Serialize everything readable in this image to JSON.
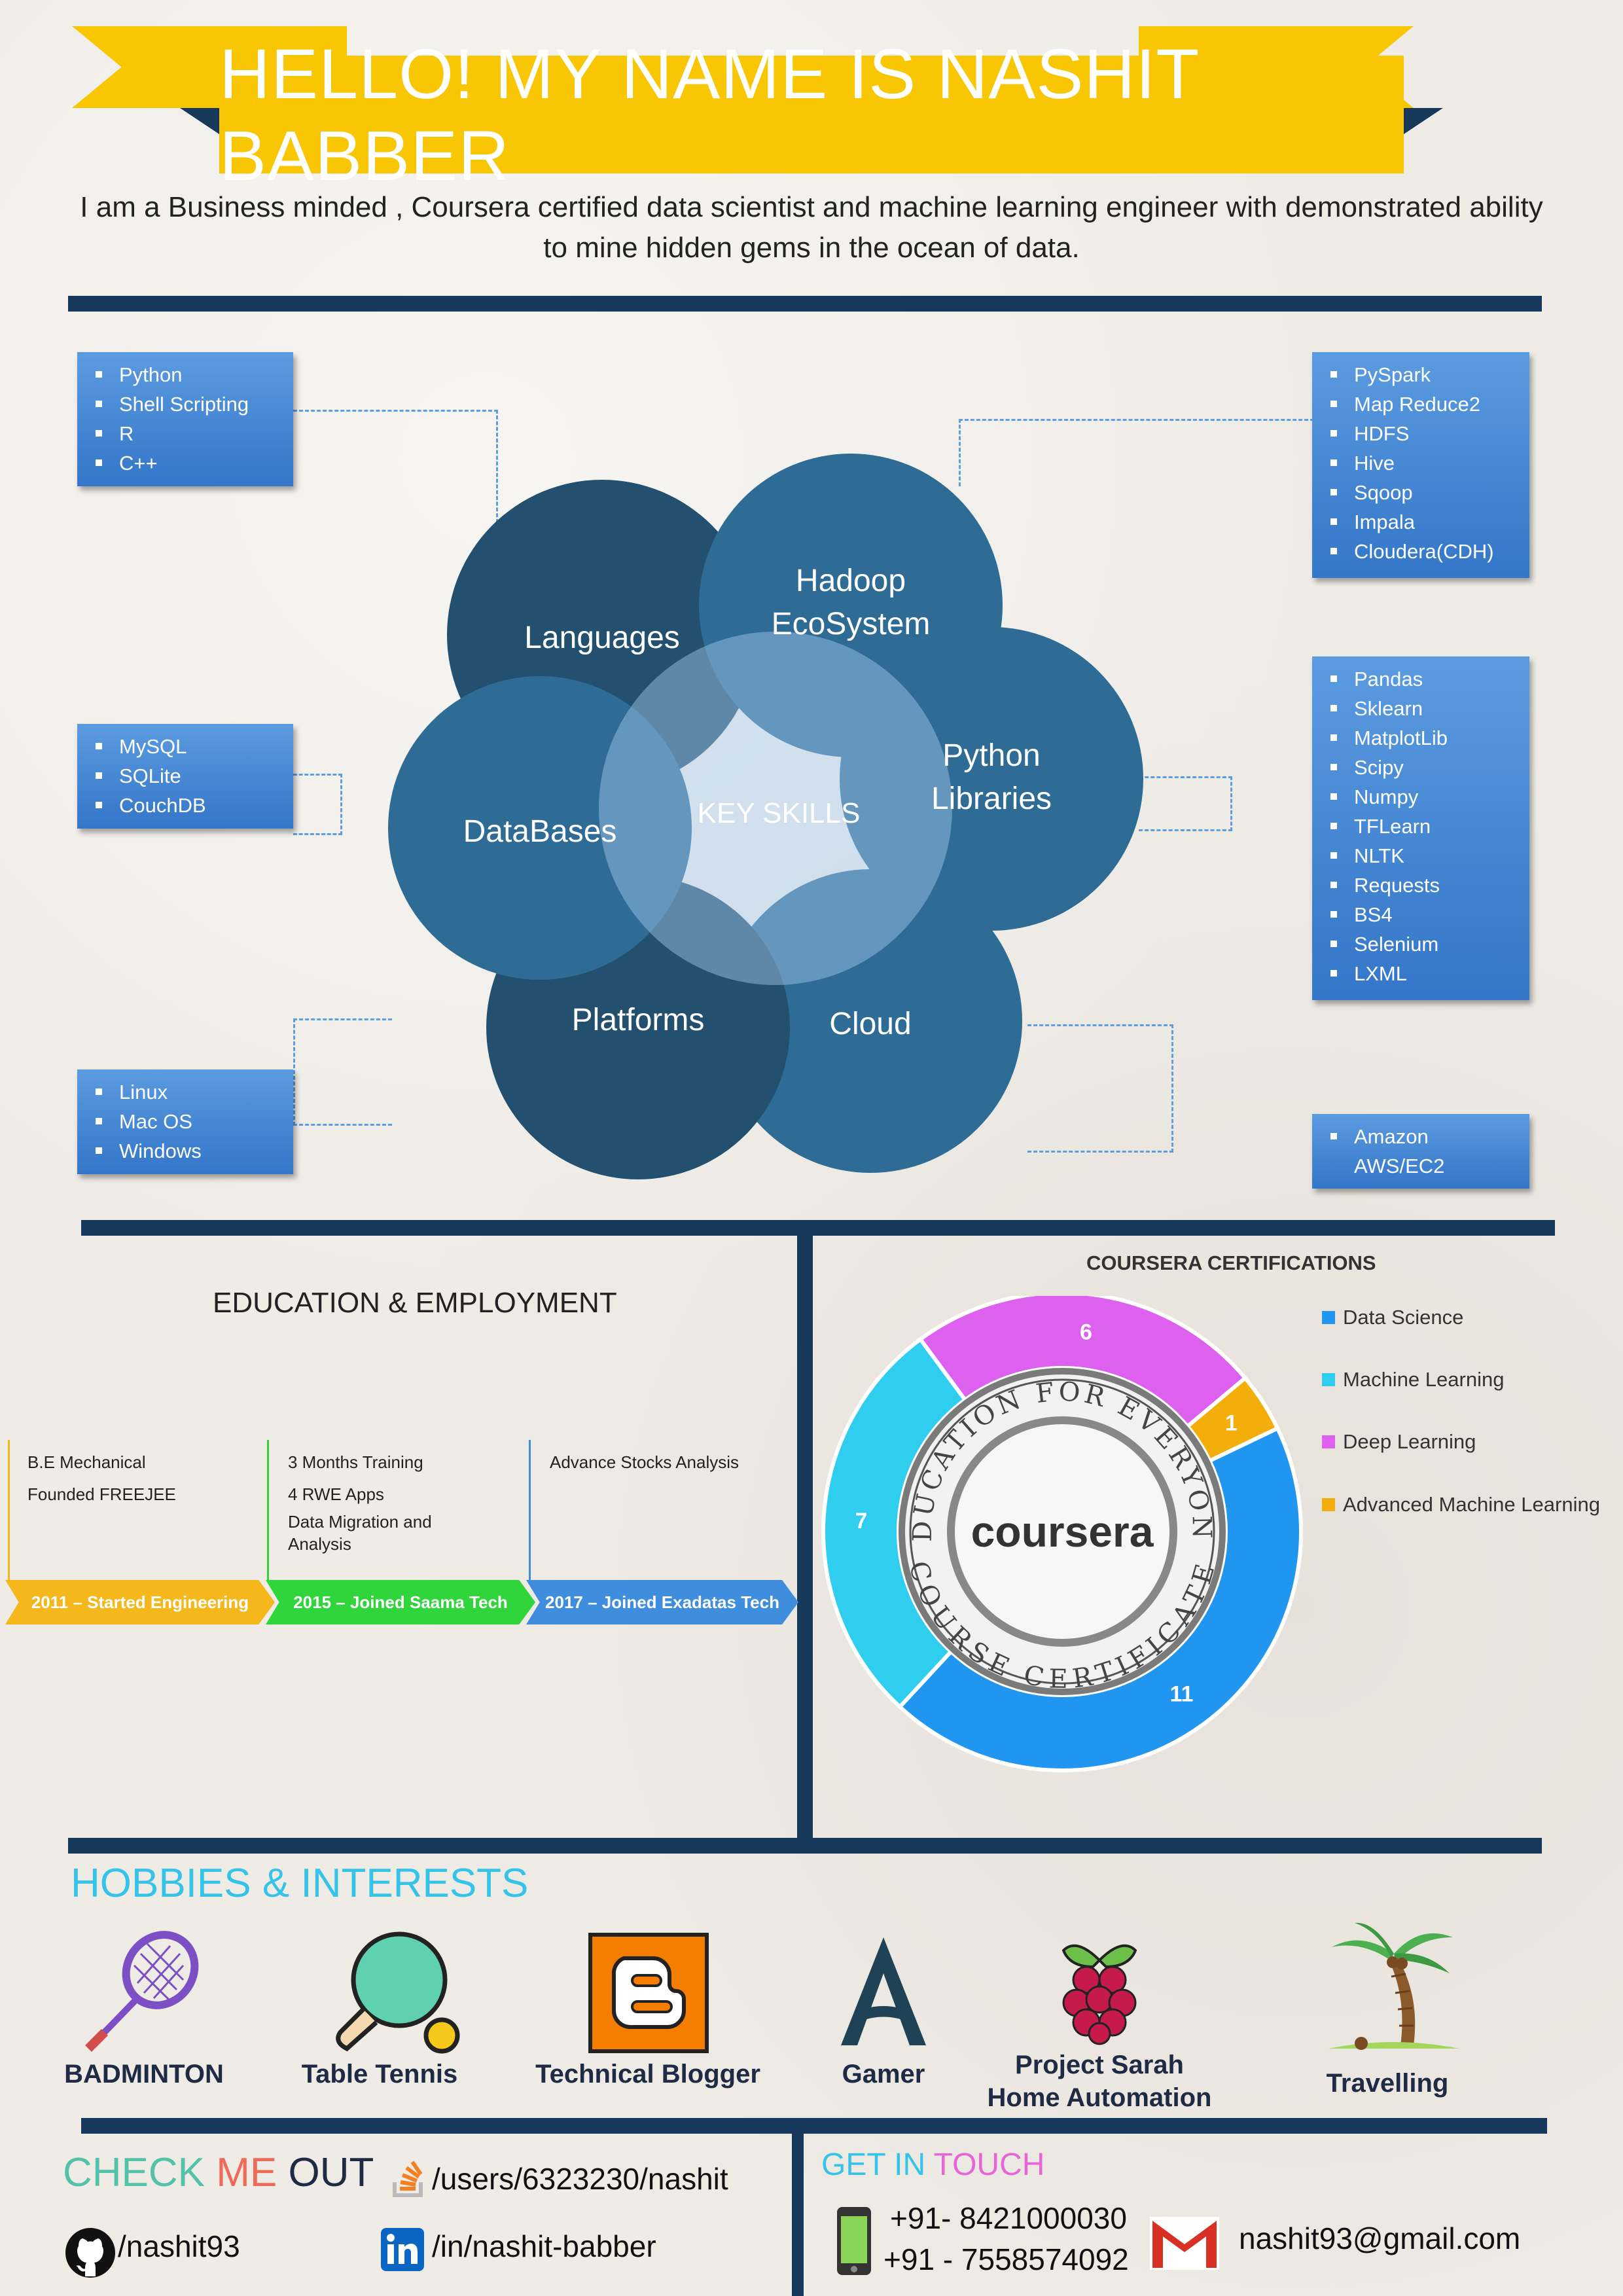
{
  "header": {
    "title": "HELLO! MY NAME IS NASHIT BABBER",
    "intro": "I am a Business minded , Coursera certified data scientist and machine learning engineer with demonstrated ability to mine hidden gems in the ocean of data."
  },
  "skills": {
    "center_label": "KEY SKILLS",
    "languages": {
      "label": "Languages",
      "items": [
        "Python",
        "Shell Scripting",
        "R",
        "C++"
      ]
    },
    "hadoop": {
      "label": "Hadoop EcoSystem",
      "items": [
        "PySpark",
        "Map Reduce2",
        "HDFS",
        "Hive",
        "Sqoop",
        "Impala",
        "Cloudera(CDH)"
      ]
    },
    "python_libraries": {
      "label": "Python Libraries",
      "items": [
        "Pandas",
        "Sklearn",
        "MatplotLib",
        "Scipy",
        "Numpy",
        "TFLearn",
        "NLTK",
        "Requests",
        "BS4",
        "Selenium",
        "LXML"
      ]
    },
    "databases": {
      "label": "DataBases",
      "items": [
        "MySQL",
        "SQLite",
        "CouchDB"
      ]
    },
    "platforms": {
      "label": "Platforms",
      "items": [
        "Linux",
        "Mac OS",
        "Windows"
      ]
    },
    "cloud": {
      "label": "Cloud",
      "items": [
        "Amazon AWS/EC2"
      ]
    },
    "colors": {
      "dark": "#23506f",
      "mid": "#2e6b95",
      "center": "#7fb3de"
    }
  },
  "education": {
    "title": "EDUCATION & EMPLOYMENT",
    "milestones": [
      {
        "label": "2011 – Started Engineering",
        "details": [
          "B.E Mechanical",
          "Founded FREEJEE"
        ],
        "color": "#f4b71c"
      },
      {
        "label": "2015 – Joined Saama Tech",
        "details": [
          "3 Months Training",
          "4 RWE Apps",
          "Data Migration and",
          "Analysis"
        ],
        "color": "#2fd53b"
      },
      {
        "label": "2017 – Joined Exadatas Tech",
        "details": [
          "Advance Stocks Analysis"
        ],
        "color": "#3f8ddd"
      }
    ]
  },
  "chart_data": {
    "type": "pie",
    "title": "COURSERA CERTIFICATIONS",
    "center_logo": "coursera",
    "seal_top": "EDUCATION FOR EVERYONE",
    "seal_bottom": "COURSE CERTIFICATE",
    "series": [
      {
        "name": "Data Science",
        "value": 11,
        "color": "#2196f0"
      },
      {
        "name": "Machine Learning",
        "value": 7,
        "color": "#2fcdee"
      },
      {
        "name": "Deep Learning",
        "value": 6,
        "color": "#dd60ef"
      },
      {
        "name": "Advanced Machine Learning",
        "value": 1,
        "color": "#f3ae0c"
      }
    ]
  },
  "hobbies": {
    "title_a": "HOBBIES",
    "title_amp": "&",
    "title_b": "INTERESTS",
    "items": [
      {
        "label": "BADMINTON",
        "icon": "badminton-racket-icon"
      },
      {
        "label": "Table Tennis",
        "icon": "table-tennis-icon"
      },
      {
        "label": "Technical Blogger",
        "icon": "blogger-icon"
      },
      {
        "label": "Gamer",
        "icon": "assassins-creed-icon"
      },
      {
        "label": "Project Sarah Home Automation",
        "label_line1": "Project Sarah",
        "label_line2": "Home Automation",
        "icon": "raspberry-pi-icon"
      },
      {
        "label": "Travelling",
        "icon": "palm-tree-icon"
      }
    ]
  },
  "footer": {
    "check_a": "CHECK",
    "check_b": "ME",
    "check_c": "OUT",
    "stackoverflow": "/users/6323230/nashit",
    "github": "/nashit93",
    "linkedin": "/in/nashit-babber",
    "touch_a": "GET",
    "touch_b": "IN",
    "touch_c": "TOUCH",
    "phone1": "+91- 8421000030",
    "phone2": "+91 - 7558574092",
    "email": "nashit93@gmail.com",
    "colors": {
      "teal": "#53c2a8",
      "coral": "#f06a5a",
      "cyan": "#36c3ea",
      "pink": "#e765d6"
    }
  }
}
